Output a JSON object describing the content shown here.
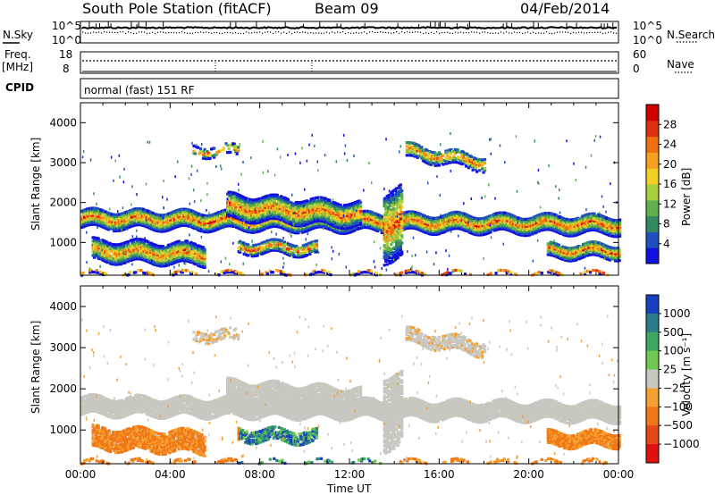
{
  "header": {
    "station": "South Pole Station (fitACF)",
    "beam": "Beam 09",
    "date": "04/Feb/2014"
  },
  "top_panel": {
    "left_label": "N.Sky",
    "left_ticks": [
      "10^5",
      "10^0"
    ],
    "right_ticks": [
      "10^5",
      "10^0"
    ],
    "right_label": "N.Search"
  },
  "freq_panel": {
    "left_label_line1": "Freq.",
    "left_label_line2": "[MHz]",
    "left_ticks": [
      "18",
      "8"
    ],
    "right_ticks": [
      "60",
      "0"
    ],
    "right_label": "Nave"
  },
  "cpid": {
    "label": "CPID",
    "value": "normal (fast) 151 RF"
  },
  "chart_data": [
    {
      "type": "heatmap",
      "title": "",
      "xlabel": "Time UT",
      "ylabel": "Slant Range [km]",
      "xlim": [
        0,
        24
      ],
      "ylim": [
        180,
        4500
      ],
      "x_tick_labels": [
        "00:00",
        "04:00",
        "08:00",
        "12:00",
        "16:00",
        "20:00",
        "00:00"
      ],
      "y_tick_labels": [
        "1000",
        "2000",
        "3000",
        "4000"
      ],
      "colorbar": {
        "label": "Power [dB]",
        "tick_labels": [
          "4",
          "8",
          "12",
          "16",
          "20",
          "24",
          "28"
        ],
        "colors": [
          "#1010e0",
          "#2050c0",
          "#308a60",
          "#60b050",
          "#a8d040",
          "#f0d020",
          "#f5a020",
          "#f07010",
          "#e03010",
          "#d00000"
        ]
      }
    },
    {
      "type": "heatmap",
      "title": "",
      "xlabel": "Time UT",
      "ylabel": "Slant Range [km]",
      "xlim": [
        0,
        24
      ],
      "ylim": [
        180,
        4500
      ],
      "x_tick_labels": [
        "00:00",
        "04:00",
        "08:00",
        "12:00",
        "16:00",
        "20:00",
        "00:00"
      ],
      "y_tick_labels": [
        "1000",
        "2000",
        "3000",
        "4000"
      ],
      "colorbar": {
        "label": "Velocity [m s⁻¹]",
        "tick_labels": [
          "1000",
          "500",
          "100",
          "25",
          "−25",
          "−100",
          "−500",
          "−1000"
        ],
        "colors": [
          "#1840c0",
          "#2a7a8a",
          "#3aa860",
          "#70c850",
          "#c8c8c0",
          "#f5a030",
          "#f07818",
          "#e84818",
          "#e01010"
        ]
      }
    }
  ],
  "x_axis_label": "Time UT"
}
